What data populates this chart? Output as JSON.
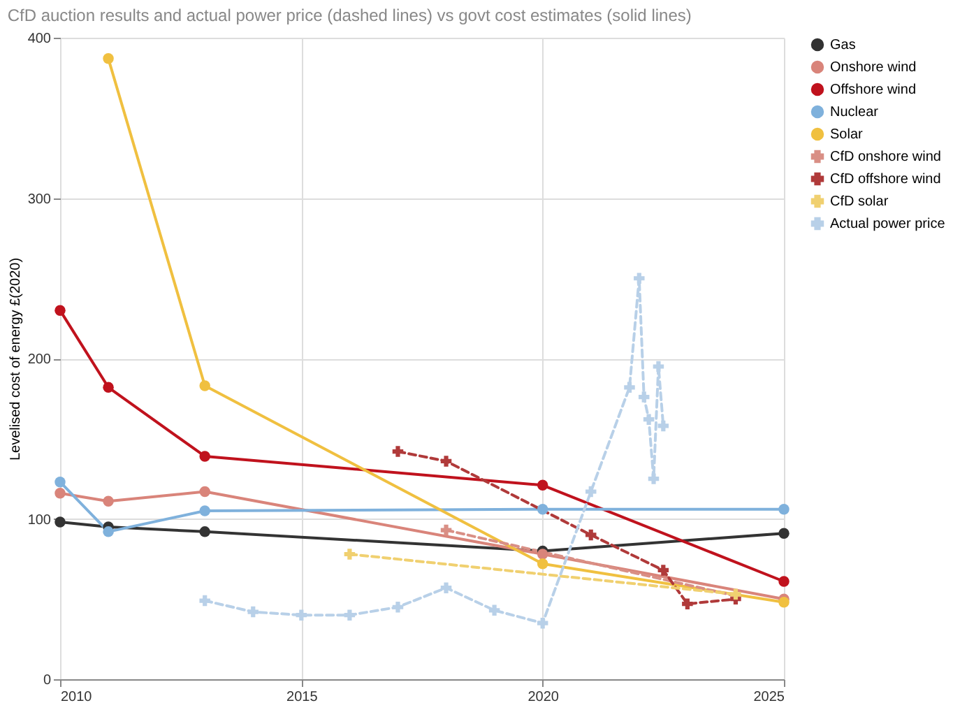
{
  "chart_data": {
    "type": "line",
    "title": "CfD auction results and actual power price (dashed lines) vs govt cost estimates (solid lines)",
    "ylabel": "Levelised cost of energy £(2020)",
    "xlim": [
      2010,
      2025
    ],
    "xticks": [
      2010,
      2015,
      2020,
      2025
    ],
    "ylim": [
      0,
      400
    ],
    "yticks": [
      0,
      100,
      200,
      300,
      400
    ],
    "grid": true,
    "legend": "right",
    "series": [
      {
        "name": "Gas",
        "color": "#333333",
        "marker": "circle",
        "line_style": "solid",
        "x": [
          2010,
          2011,
          2013,
          2020,
          2025
        ],
        "values": [
          98,
          95,
          92,
          80,
          91
        ]
      },
      {
        "name": "Onshore wind",
        "color": "#d9847a",
        "marker": "circle",
        "line_style": "solid",
        "x": [
          2010,
          2011,
          2013,
          2020,
          2025
        ],
        "values": [
          116,
          111,
          117,
          78,
          50
        ]
      },
      {
        "name": "Offshore wind",
        "color": "#c0121d",
        "marker": "circle",
        "line_style": "solid",
        "x": [
          2010,
          2011,
          2013,
          2020,
          2025
        ],
        "values": [
          230,
          182,
          139,
          121,
          61
        ]
      },
      {
        "name": "Nuclear",
        "color": "#7fb1dc",
        "marker": "circle",
        "line_style": "solid",
        "x": [
          2010,
          2011,
          2013,
          2020,
          2025
        ],
        "values": [
          123,
          92,
          105,
          106,
          106
        ]
      },
      {
        "name": "Solar",
        "color": "#f0c040",
        "marker": "circle",
        "line_style": "solid",
        "x": [
          2011,
          2013,
          2020,
          2025
        ],
        "values": [
          387,
          183,
          72,
          48
        ]
      },
      {
        "name": "CfD onshore wind",
        "color": "#d98f85",
        "marker": "cross",
        "line_style": "dashed",
        "x": [
          2018,
          2024
        ],
        "values": [
          93,
          52
        ]
      },
      {
        "name": "CfD offshore wind",
        "color": "#b03a3a",
        "marker": "cross",
        "line_style": "dashed",
        "x": [
          2017,
          2018,
          2021,
          2022.5,
          2023,
          2024
        ],
        "values": [
          142,
          136,
          90,
          68,
          47,
          50
        ]
      },
      {
        "name": "CfD solar",
        "color": "#f0d070",
        "marker": "cross",
        "line_style": "dashed",
        "x": [
          2016,
          2024
        ],
        "values": [
          78,
          53
        ]
      },
      {
        "name": "Actual power price",
        "color": "#b8d0e8",
        "marker": "cross",
        "line_style": "dashed",
        "x": [
          2013,
          2014,
          2015,
          2016,
          2017,
          2018,
          2019,
          2020,
          2021,
          2021.8,
          2022,
          2022.1,
          2022.2,
          2022.3,
          2022.4,
          2022.5
        ],
        "values": [
          49,
          42,
          40,
          40,
          45,
          57,
          43,
          35,
          117,
          182,
          250,
          176,
          162,
          125,
          195,
          158
        ]
      }
    ]
  }
}
